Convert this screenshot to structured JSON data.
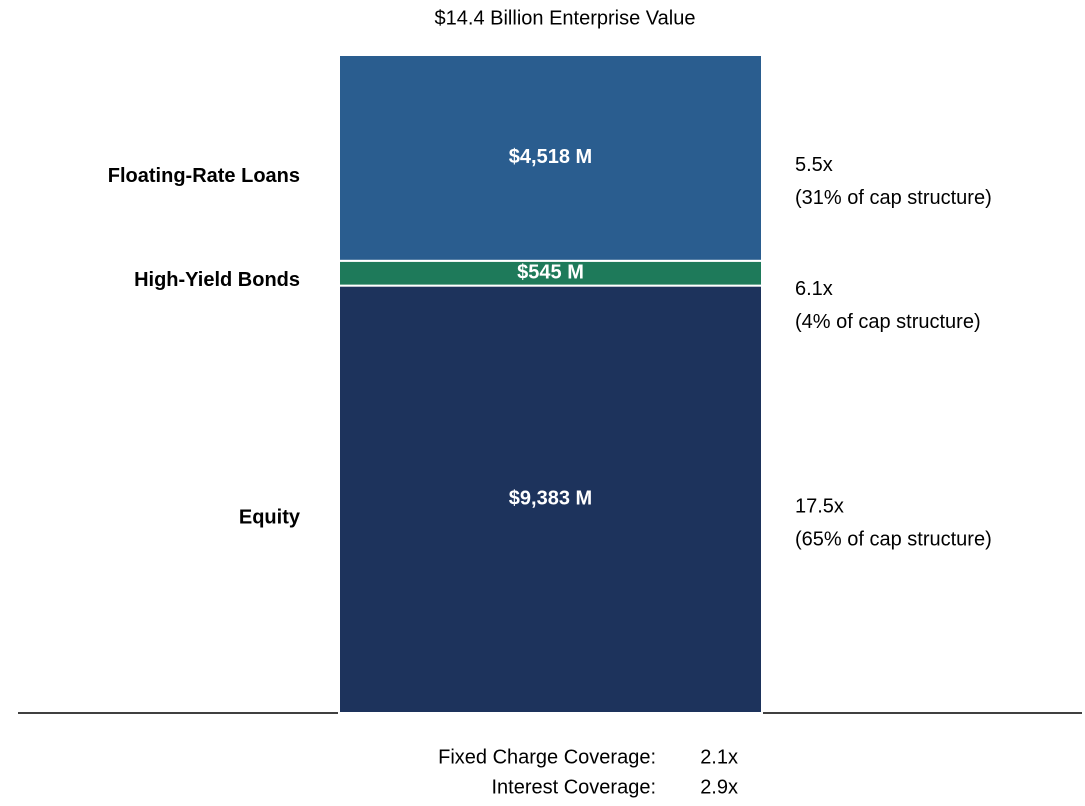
{
  "chart_data": {
    "type": "stacked_bar",
    "title": "$14.4 Billion Enterprise Value",
    "ylim": [
      0,
      14446
    ],
    "series": [
      {
        "name": "Equity",
        "color": "#1d335c",
        "values": [
          9383
        ],
        "value_labels": [
          "$9,383 M"
        ],
        "multiple": "17.5x",
        "share": "(65% of cap structure)"
      },
      {
        "name": "High-Yield Bonds",
        "color": "#1e7a5a",
        "values": [
          545
        ],
        "value_labels": [
          "$545 M"
        ],
        "multiple": "6.1x",
        "share": "(4% of cap structure)"
      },
      {
        "name": "Floating-Rate Loans",
        "color": "#2a5d8f",
        "values": [
          4518
        ],
        "value_labels": [
          "$4,518 M"
        ],
        "multiple": "5.5x",
        "share": "(31% of cap structure)"
      }
    ],
    "footnotes": [
      {
        "label": "Fixed Charge Coverage:",
        "value": "2.1x"
      },
      {
        "label": "Interest Coverage:",
        "value": "2.9x"
      }
    ]
  }
}
